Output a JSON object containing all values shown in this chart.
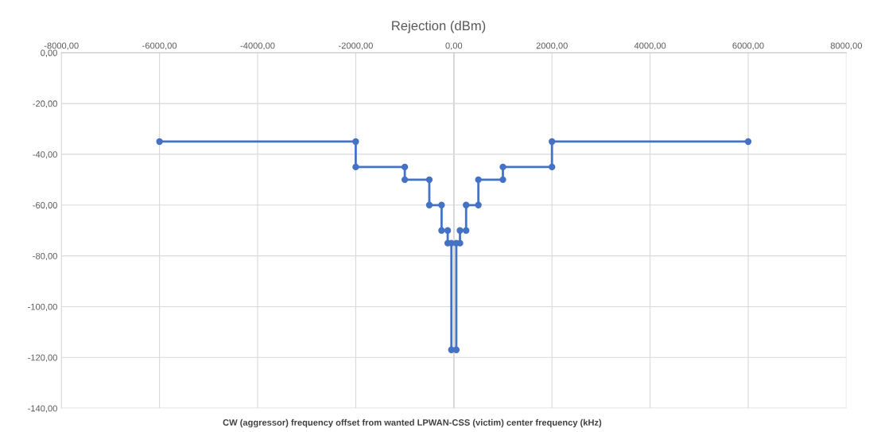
{
  "chart_data": {
    "type": "line",
    "title": "Rejection (dBm)",
    "xlabel": "CW (aggressor) frequency offset from wanted LPWAN-CSS (victim) center frequency (kHz)",
    "x": [
      -6000,
      -2000,
      -2000,
      -1000,
      -1000,
      -500,
      -500,
      -250,
      -250,
      -125,
      -125,
      -50,
      -50,
      50,
      50,
      125,
      125,
      250,
      250,
      500,
      500,
      1000,
      1000,
      2000,
      2000,
      6000
    ],
    "series": [
      {
        "color": "#4472c4",
        "values": [
          -35,
          -35,
          -45,
          -45,
          -50,
          -50,
          -60,
          -60,
          -70,
          -70,
          -75,
          -75,
          -117,
          -117,
          -75,
          -75,
          -70,
          -70,
          -60,
          -60,
          -50,
          -50,
          -45,
          -45,
          -35,
          -35
        ]
      }
    ],
    "xlim": [
      -8000,
      8000
    ],
    "ylim": [
      -140,
      0
    ],
    "xticks": [
      {
        "value": -8000,
        "label": "-8000,00"
      },
      {
        "value": -6000,
        "label": "-6000,00"
      },
      {
        "value": -4000,
        "label": "-4000,00"
      },
      {
        "value": -2000,
        "label": "-2000,00"
      },
      {
        "value": 0,
        "label": "0,00"
      },
      {
        "value": 2000,
        "label": "2000,00"
      },
      {
        "value": 4000,
        "label": "4000,00"
      },
      {
        "value": 6000,
        "label": "6000,00"
      },
      {
        "value": 8000,
        "label": "8000,00"
      }
    ],
    "yticks": [
      {
        "value": 0,
        "label": "0,00"
      },
      {
        "value": -20,
        "label": "-20,00"
      },
      {
        "value": -40,
        "label": "-40,00"
      },
      {
        "value": -60,
        "label": "-60,00"
      },
      {
        "value": -80,
        "label": "-80,00"
      },
      {
        "value": -100,
        "label": "-100,00"
      },
      {
        "value": -120,
        "label": "-120,00"
      },
      {
        "value": -140,
        "label": "-140,00"
      }
    ],
    "grid": true,
    "marker": "circle",
    "line_style": "solid",
    "legend": false
  }
}
